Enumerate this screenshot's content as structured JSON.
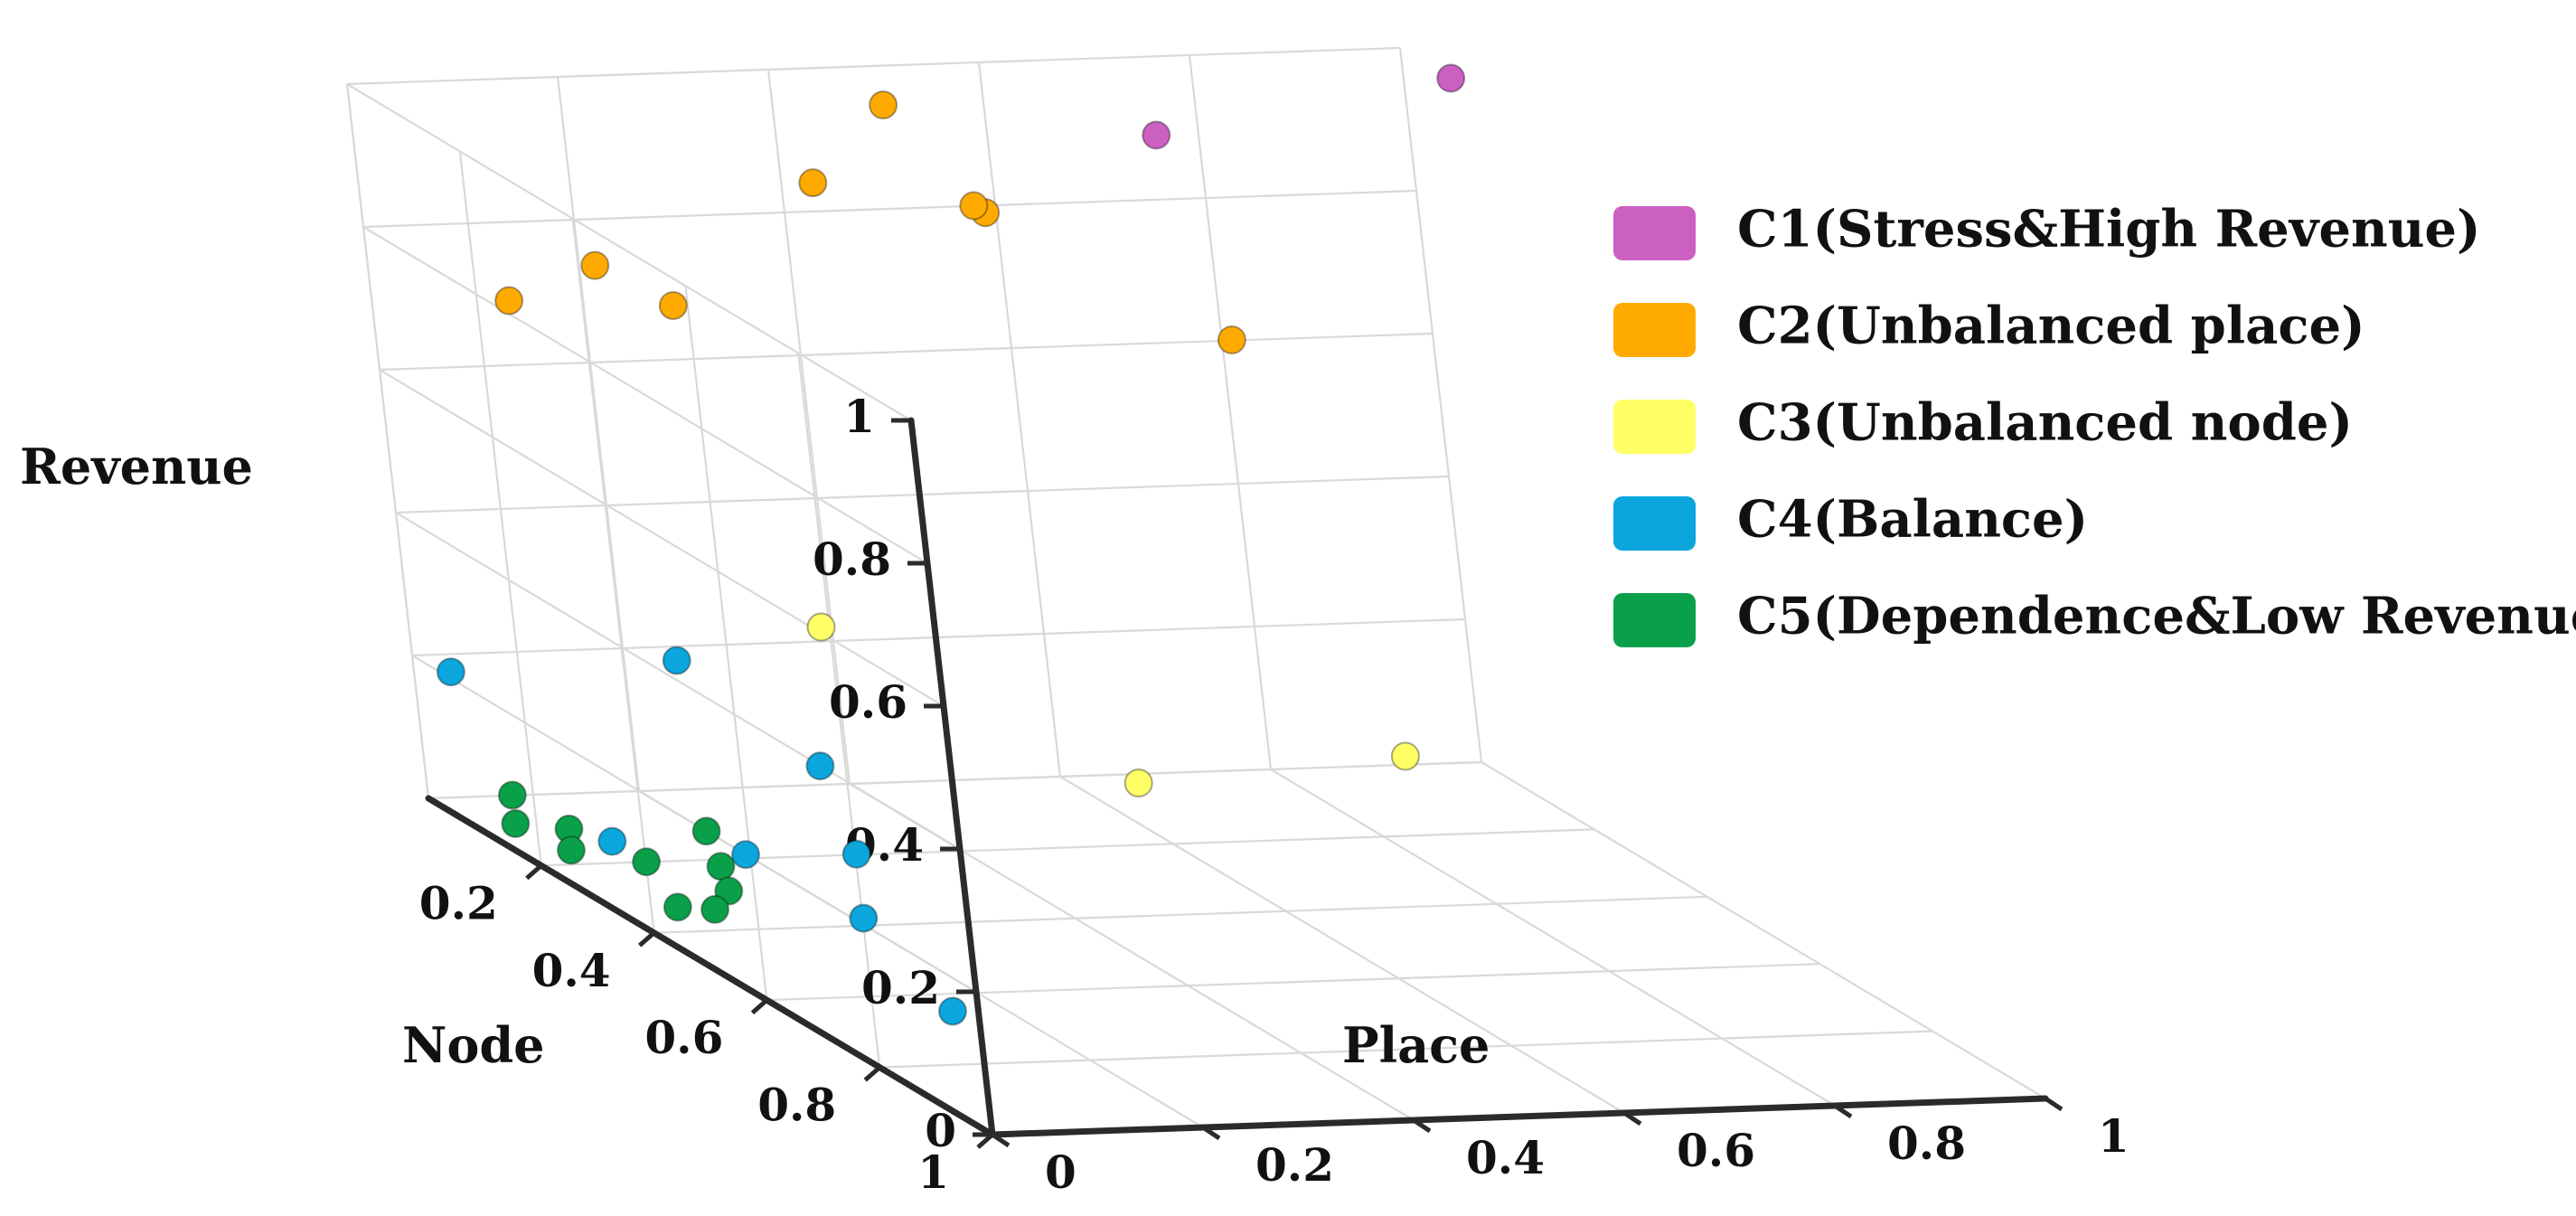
{
  "chart_data": {
    "type": "scatter3d",
    "title": "",
    "axes": {
      "x": {
        "label": "Node",
        "range": [
          0,
          1
        ],
        "ticks": [
          "0.2",
          "0.4",
          "0.6",
          "0.8",
          "1"
        ]
      },
      "y": {
        "label": "Place",
        "range": [
          0,
          1
        ],
        "ticks": [
          "0",
          "0.2",
          "0.4",
          "0.6",
          "0.8",
          "1"
        ]
      },
      "z": {
        "label": "Revenue",
        "range": [
          0,
          1
        ],
        "ticks": [
          "0",
          "0.2",
          "0.4",
          "0.6",
          "0.8",
          "1"
        ]
      }
    },
    "legend_position": "right",
    "series": [
      {
        "name": "C1(Stress&High Revenue)",
        "color": "#cc5fc2",
        "points": [
          [
            0.09,
            1.0,
            1.0
          ],
          [
            0.02,
            0.75,
            0.9
          ]
        ]
      },
      {
        "name": "C2(Unbalanced place)",
        "color": "#ffaa00",
        "points": [
          [
            0.12,
            0.52,
            0.86
          ],
          [
            0.05,
            0.48,
            0.97
          ],
          [
            0.02,
            0.42,
            0.85
          ],
          [
            0.02,
            0.58,
            0.8
          ],
          [
            0.22,
            0.7,
            0.71
          ],
          [
            0.03,
            0.2,
            0.75
          ],
          [
            0.13,
            0.22,
            0.74
          ],
          [
            0.06,
            0.1,
            0.72
          ]
        ]
      },
      {
        "name": "C3(Unbalanced node)",
        "color": "#ffff66",
        "points": [
          [
            0.48,
            0.69,
            0.25
          ],
          [
            0.02,
            0.38,
            0.23
          ],
          [
            0.59,
            0.38,
            0.28
          ]
        ]
      },
      {
        "name": "C4(Balance)",
        "color": "#0aa6dc",
        "points": [
          [
            0.05,
            0.01,
            0.2
          ],
          [
            0.1,
            0.2,
            0.23
          ],
          [
            0.35,
            0.2,
            0.2
          ],
          [
            0.4,
            0.2,
            0.1
          ],
          [
            0.3,
            0.02,
            0.08
          ],
          [
            0.35,
            0.12,
            0.08
          ],
          [
            0.5,
            0.15,
            0.06
          ],
          [
            0.75,
            0.1,
            0.05
          ]
        ]
      },
      {
        "name": "C5(Dependence&Low Revenue)",
        "color": "#0aa04a",
        "points": [
          [
            0.1,
            0.03,
            0.05
          ],
          [
            0.14,
            0.06,
            0.02
          ],
          [
            0.14,
            0.01,
            0.03
          ],
          [
            0.2,
            0.03,
            0.02
          ],
          [
            0.26,
            0.07,
            0.03
          ],
          [
            0.22,
            0.15,
            0.05
          ],
          [
            0.28,
            0.13,
            0.03
          ],
          [
            0.33,
            0.11,
            0.02
          ],
          [
            0.34,
            0.09,
            0.0
          ],
          [
            0.33,
            0.06,
            0.0
          ]
        ]
      }
    ]
  }
}
